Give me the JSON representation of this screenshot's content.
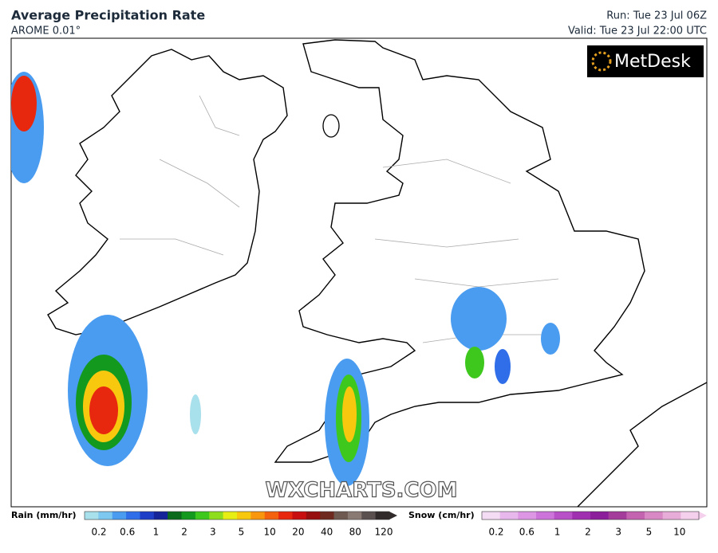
{
  "header": {
    "title": "Average Precipitation Rate",
    "subtitle": "AROME 0.01°",
    "run": "Run: Tue 23 Jul 06Z",
    "valid": "Valid: Tue 23 Jul 22:00 UTC"
  },
  "logo": "MetDesk",
  "watermark": "WXCHARTS.COM",
  "legend": {
    "rain": {
      "label": "Rain (mm/hr)",
      "ticks": [
        "0.2",
        "0.6",
        "1",
        "2",
        "3",
        "5",
        "10",
        "20",
        "40",
        "80",
        "120"
      ],
      "colors": [
        "#a8e0ec",
        "#7cc8f0",
        "#4a9cf0",
        "#2f6ee8",
        "#1f3ec8",
        "#16249a",
        "#0b6a1c",
        "#139a1e",
        "#3ec81e",
        "#8ede1e",
        "#e6ee14",
        "#f8c80e",
        "#f8960e",
        "#f4620e",
        "#e8280e",
        "#c80e0e",
        "#960e0e",
        "#6e2a1e",
        "#6e5a50",
        "#8a7a74",
        "#5a5050",
        "#302a2a"
      ]
    },
    "snow": {
      "label": "Snow (cm/hr)",
      "ticks": [
        "0.2",
        "0.6",
        "1",
        "2",
        "3",
        "5",
        "10"
      ],
      "colors": [
        "#f4dcf4",
        "#e8b8ec",
        "#dc96e4",
        "#cc74da",
        "#b850c8",
        "#a030b0",
        "#8c1e9c",
        "#a43c9c",
        "#c464b0",
        "#d888c4",
        "#e8acd8",
        "#f4d0ec"
      ]
    }
  }
}
